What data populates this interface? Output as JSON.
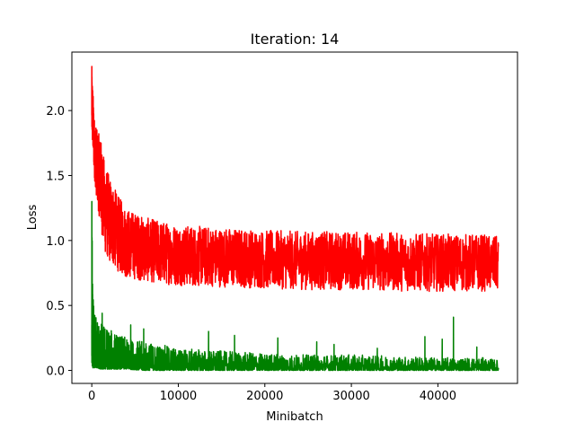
{
  "chart_data": {
    "type": "line",
    "title": "Iteration: 14",
    "xlabel": "Minibatch",
    "ylabel": "Loss",
    "xlim": [
      -2300,
      49200
    ],
    "ylim": [
      -0.1,
      2.45
    ],
    "x_ticks": [
      0,
      10000,
      20000,
      30000,
      40000
    ],
    "y_ticks": [
      0.0,
      0.5,
      1.0,
      1.5,
      2.0
    ],
    "x_tick_labels": [
      "0",
      "10000",
      "20000",
      "30000",
      "40000"
    ],
    "y_tick_labels": [
      "0.0",
      "0.5",
      "1.0",
      "1.5",
      "2.0"
    ],
    "grid": false,
    "legend": null,
    "series": [
      {
        "color": "#ff0000",
        "x": [
          0,
          100,
          300,
          600,
          1000,
          1500,
          2000,
          3000,
          4000,
          6000,
          8000,
          10000,
          15000,
          20000,
          25000,
          30000,
          35000,
          40000,
          45000,
          47000
        ],
        "y_low": [
          1.7,
          1.6,
          1.4,
          1.2,
          1.0,
          0.78,
          0.72,
          0.66,
          0.62,
          0.6,
          0.58,
          0.57,
          0.56,
          0.55,
          0.54,
          0.54,
          0.53,
          0.53,
          0.53,
          0.53
        ],
        "y_high": [
          2.35,
          2.2,
          1.95,
          1.85,
          1.8,
          1.6,
          1.5,
          1.35,
          1.25,
          1.18,
          1.15,
          1.12,
          1.1,
          1.08,
          1.07,
          1.07,
          1.06,
          1.05,
          1.05,
          1.03
        ]
      },
      {
        "color": "#008000",
        "x": [
          0,
          100,
          300,
          600,
          1000,
          1500,
          2000,
          3000,
          4000,
          6000,
          8000,
          10000,
          15000,
          20000,
          25000,
          30000,
          35000,
          40000,
          45000,
          47000
        ],
        "y_low": [
          0.05,
          0.02,
          0.02,
          0.02,
          0.01,
          0.01,
          0.01,
          0.01,
          0.01,
          0.0,
          0.0,
          0.0,
          0.0,
          0.0,
          0.0,
          0.0,
          0.0,
          0.0,
          0.0,
          0.0
        ],
        "y_high": [
          1.45,
          0.6,
          0.45,
          0.42,
          0.38,
          0.35,
          0.32,
          0.28,
          0.25,
          0.22,
          0.2,
          0.17,
          0.15,
          0.13,
          0.12,
          0.12,
          0.11,
          0.1,
          0.1,
          0.08
        ],
        "spikes": [
          [
            1200,
            0.44
          ],
          [
            4500,
            0.35
          ],
          [
            6000,
            0.32
          ],
          [
            13500,
            0.3
          ],
          [
            16500,
            0.27
          ],
          [
            21500,
            0.25
          ],
          [
            26000,
            0.22
          ],
          [
            28000,
            0.2
          ],
          [
            33000,
            0.17
          ],
          [
            38500,
            0.26
          ],
          [
            40500,
            0.24
          ],
          [
            41800,
            0.41
          ],
          [
            44500,
            0.18
          ]
        ]
      }
    ]
  }
}
